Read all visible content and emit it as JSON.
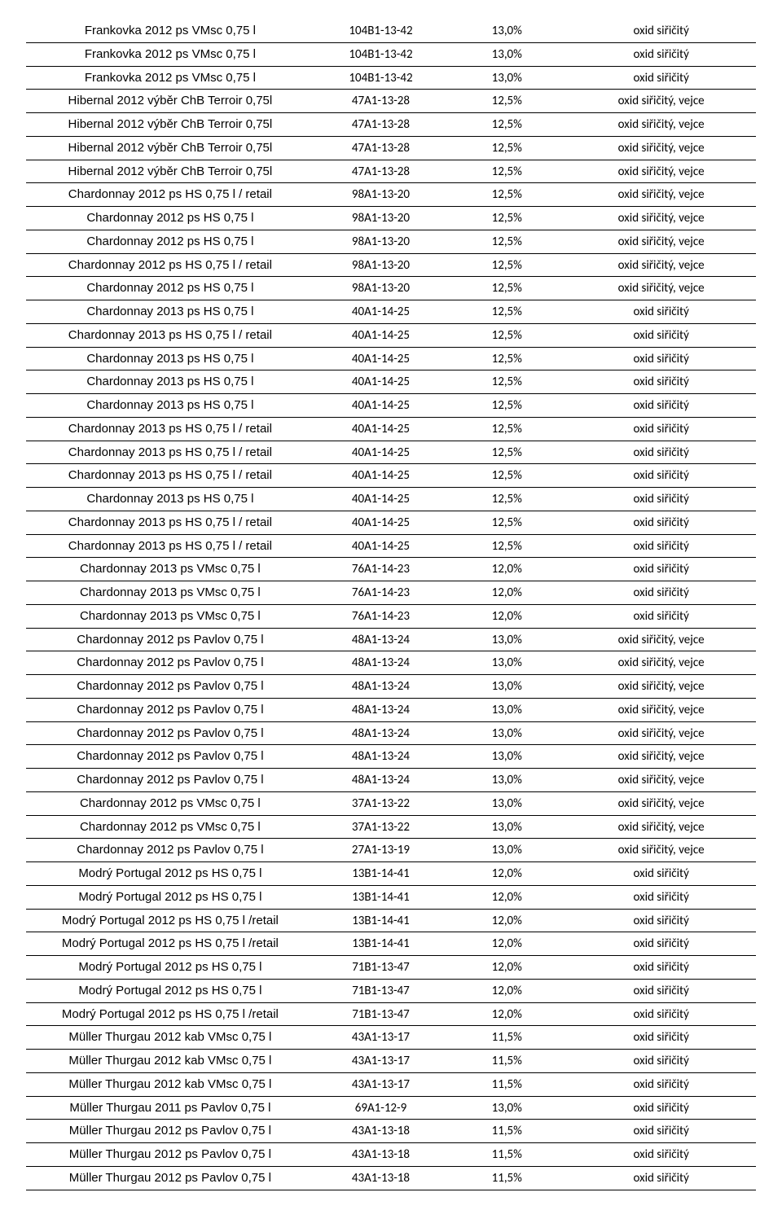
{
  "rows": [
    {
      "name": "Frankovka 2012 ps VMsc 0,75 l",
      "code": "104B1-13-42",
      "pct": "13,0%",
      "note": "oxid siřičitý"
    },
    {
      "name": "Frankovka 2012 ps VMsc 0,75 l",
      "code": "104B1-13-42",
      "pct": "13,0%",
      "note": "oxid siřičitý"
    },
    {
      "name": "Frankovka 2012 ps VMsc 0,75 l",
      "code": "104B1-13-42",
      "pct": "13,0%",
      "note": "oxid siřičitý"
    },
    {
      "name": "Hibernal 2012 výběr ChB Terroir 0,75l",
      "code": "47A1-13-28",
      "pct": "12,5%",
      "note": "oxid siřičitý, vejce"
    },
    {
      "name": "Hibernal 2012 výběr ChB Terroir 0,75l",
      "code": "47A1-13-28",
      "pct": "12,5%",
      "note": "oxid siřičitý, vejce"
    },
    {
      "name": "Hibernal 2012 výběr ChB Terroir 0,75l",
      "code": "47A1-13-28",
      "pct": "12,5%",
      "note": "oxid siřičitý, vejce"
    },
    {
      "name": "Hibernal 2012 výběr ChB Terroir 0,75l",
      "code": "47A1-13-28",
      "pct": "12,5%",
      "note": "oxid siřičitý, vejce"
    },
    {
      "name": "Chardonnay 2012 ps HS 0,75 l / retail",
      "code": "98A1-13-20",
      "pct": "12,5%",
      "note": "oxid siřičitý, vejce"
    },
    {
      "name": "Chardonnay 2012 ps HS 0,75 l",
      "code": "98A1-13-20",
      "pct": "12,5%",
      "note": "oxid siřičitý, vejce"
    },
    {
      "name": "Chardonnay 2012 ps HS 0,75 l",
      "code": "98A1-13-20",
      "pct": "12,5%",
      "note": "oxid siřičitý, vejce"
    },
    {
      "name": "Chardonnay 2012 ps HS 0,75 l / retail",
      "code": "98A1-13-20",
      "pct": "12,5%",
      "note": "oxid siřičitý, vejce"
    },
    {
      "name": "Chardonnay 2012 ps HS 0,75 l",
      "code": "98A1-13-20",
      "pct": "12,5%",
      "note": "oxid siřičitý, vejce"
    },
    {
      "name": "Chardonnay 2013 ps HS 0,75 l",
      "code": "40A1-14-25",
      "pct": "12,5%",
      "note": "oxid siřičitý"
    },
    {
      "name": "Chardonnay 2013 ps HS 0,75 l / retail",
      "code": "40A1-14-25",
      "pct": "12,5%",
      "note": "oxid siřičitý"
    },
    {
      "name": "Chardonnay 2013 ps HS 0,75 l",
      "code": "40A1-14-25",
      "pct": "12,5%",
      "note": "oxid siřičitý"
    },
    {
      "name": "Chardonnay 2013 ps HS 0,75 l",
      "code": "40A1-14-25",
      "pct": "12,5%",
      "note": "oxid siřičitý"
    },
    {
      "name": "Chardonnay 2013 ps HS 0,75 l",
      "code": "40A1-14-25",
      "pct": "12,5%",
      "note": "oxid siřičitý"
    },
    {
      "name": "Chardonnay 2013 ps HS 0,75 l / retail",
      "code": "40A1-14-25",
      "pct": "12,5%",
      "note": "oxid siřičitý"
    },
    {
      "name": "Chardonnay 2013 ps HS 0,75 l / retail",
      "code": "40A1-14-25",
      "pct": "12,5%",
      "note": "oxid siřičitý"
    },
    {
      "name": "Chardonnay 2013 ps HS 0,75 l / retail",
      "code": "40A1-14-25",
      "pct": "12,5%",
      "note": "oxid siřičitý"
    },
    {
      "name": "Chardonnay 2013 ps HS 0,75 l",
      "code": "40A1-14-25",
      "pct": "12,5%",
      "note": "oxid siřičitý"
    },
    {
      "name": "Chardonnay 2013 ps HS 0,75 l / retail",
      "code": "40A1-14-25",
      "pct": "12,5%",
      "note": "oxid siřičitý"
    },
    {
      "name": "Chardonnay 2013 ps HS 0,75 l / retail",
      "code": "40A1-14-25",
      "pct": "12,5%",
      "note": "oxid siřičitý"
    },
    {
      "name": "Chardonnay 2013 ps VMsc 0,75 l",
      "code": "76A1-14-23",
      "pct": "12,0%",
      "note": "oxid siřičitý"
    },
    {
      "name": "Chardonnay 2013 ps VMsc 0,75 l",
      "code": "76A1-14-23",
      "pct": "12,0%",
      "note": "oxid siřičitý"
    },
    {
      "name": "Chardonnay 2013 ps VMsc 0,75 l",
      "code": "76A1-14-23",
      "pct": "12,0%",
      "note": "oxid siřičitý"
    },
    {
      "name": "Chardonnay 2012 ps Pavlov 0,75 l",
      "code": "48A1-13-24",
      "pct": "13,0%",
      "note": "oxid siřičitý, vejce"
    },
    {
      "name": "Chardonnay 2012 ps Pavlov 0,75 l",
      "code": "48A1-13-24",
      "pct": "13,0%",
      "note": "oxid siřičitý, vejce"
    },
    {
      "name": "Chardonnay 2012 ps Pavlov 0,75 l",
      "code": "48A1-13-24",
      "pct": "13,0%",
      "note": "oxid siřičitý, vejce"
    },
    {
      "name": "Chardonnay 2012 ps Pavlov 0,75 l",
      "code": "48A1-13-24",
      "pct": "13,0%",
      "note": "oxid siřičitý, vejce"
    },
    {
      "name": "Chardonnay 2012 ps Pavlov 0,75 l",
      "code": "48A1-13-24",
      "pct": "13,0%",
      "note": "oxid siřičitý, vejce"
    },
    {
      "name": "Chardonnay 2012 ps Pavlov 0,75 l",
      "code": "48A1-13-24",
      "pct": "13,0%",
      "note": "oxid siřičitý, vejce"
    },
    {
      "name": "Chardonnay 2012 ps Pavlov 0,75 l",
      "code": "48A1-13-24",
      "pct": "13,0%",
      "note": "oxid siřičitý, vejce"
    },
    {
      "name": "Chardonnay 2012 ps VMsc 0,75 l",
      "code": "37A1-13-22",
      "pct": "13,0%",
      "note": "oxid siřičitý, vejce"
    },
    {
      "name": "Chardonnay 2012 ps VMsc 0,75 l",
      "code": "37A1-13-22",
      "pct": "13,0%",
      "note": "oxid siřičitý, vejce"
    },
    {
      "name": "Chardonnay 2012 ps Pavlov 0,75 l",
      "code": "27A1-13-19",
      "pct": "13,0%",
      "note": "oxid siřičitý, vejce"
    },
    {
      "name": "Modrý Portugal 2012 ps HS 0,75 l",
      "code": "13B1-14-41",
      "pct": "12,0%",
      "note": "oxid siřičitý"
    },
    {
      "name": "Modrý Portugal 2012 ps HS 0,75 l",
      "code": "13B1-14-41",
      "pct": "12,0%",
      "note": "oxid siřičitý"
    },
    {
      "name": "Modrý Portugal 2012 ps HS 0,75 l /retail",
      "code": "13B1-14-41",
      "pct": "12,0%",
      "note": "oxid siřičitý"
    },
    {
      "name": "Modrý Portugal 2012 ps HS 0,75 l /retail",
      "code": "13B1-14-41",
      "pct": "12,0%",
      "note": "oxid siřičitý"
    },
    {
      "name": "Modrý Portugal 2012 ps HS 0,75 l",
      "code": "71B1-13-47",
      "pct": "12,0%",
      "note": "oxid siřičitý"
    },
    {
      "name": "Modrý Portugal 2012 ps HS 0,75 l",
      "code": "71B1-13-47",
      "pct": "12,0%",
      "note": "oxid siřičitý"
    },
    {
      "name": "Modrý Portugal 2012 ps HS 0,75 l /retail",
      "code": "71B1-13-47",
      "pct": "12,0%",
      "note": "oxid siřičitý"
    },
    {
      "name": "Müller Thurgau 2012 kab VMsc 0,75 l",
      "code": "43A1-13-17",
      "pct": "11,5%",
      "note": "oxid siřičitý"
    },
    {
      "name": "Müller Thurgau 2012 kab VMsc 0,75 l",
      "code": "43A1-13-17",
      "pct": "11,5%",
      "note": "oxid siřičitý"
    },
    {
      "name": "Müller Thurgau 2012 kab VMsc 0,75 l",
      "code": "43A1-13-17",
      "pct": "11,5%",
      "note": "oxid siřičitý"
    },
    {
      "name": "Müller Thurgau 2011 ps Pavlov 0,75 l",
      "code": "69A1-12-9",
      "pct": "13,0%",
      "note": "oxid siřičitý"
    },
    {
      "name": "Müller Thurgau 2012 ps Pavlov 0,75 l",
      "code": "43A1-13-18",
      "pct": "11,5%",
      "note": "oxid siřičitý"
    },
    {
      "name": "Müller Thurgau 2012 ps Pavlov 0,75 l",
      "code": "43A1-13-18",
      "pct": "11,5%",
      "note": "oxid siřičitý"
    },
    {
      "name": "Müller Thurgau 2012 ps Pavlov 0,75 l",
      "code": "43A1-13-18",
      "pct": "11,5%",
      "note": "oxid siřičitý"
    }
  ]
}
